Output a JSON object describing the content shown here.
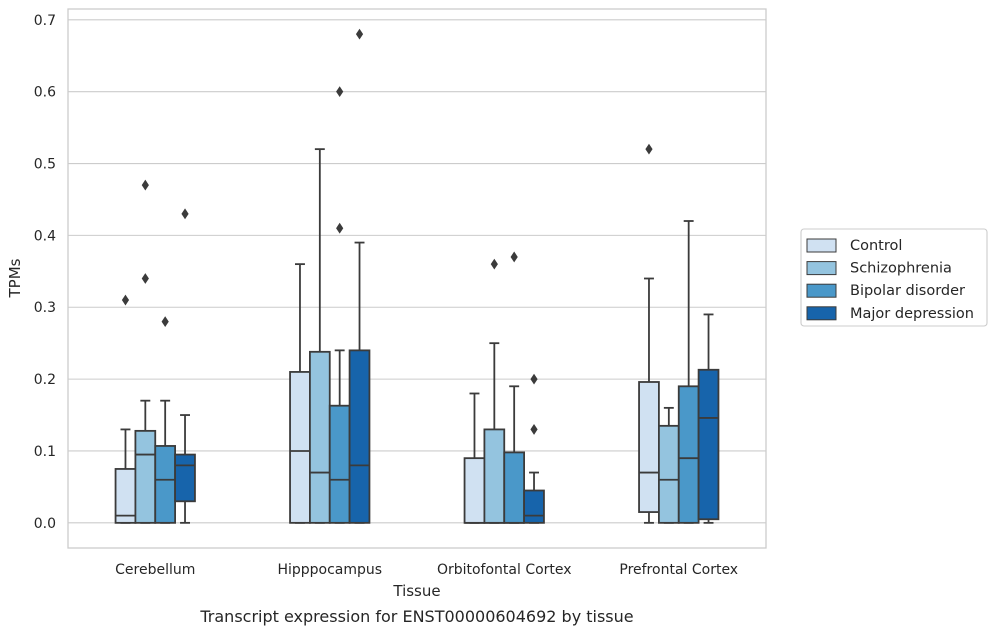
{
  "chart_data": {
    "type": "box",
    "caption": "Transcript expression for ENST00000604692 by tissue",
    "xlabel": "Tissue",
    "ylabel": "TPMs",
    "ylim": [
      -0.035,
      0.715
    ],
    "yticks": [
      0.0,
      0.1,
      0.2,
      0.3,
      0.4,
      0.5,
      0.6,
      0.7
    ],
    "ytick_labels": [
      "0.0",
      "0.1",
      "0.2",
      "0.3",
      "0.4",
      "0.5",
      "0.6",
      "0.7"
    ],
    "grid": "horizontal",
    "legend_position": "right-center",
    "categories": [
      "Cerebellum",
      "Hipppocampus",
      "Orbitofontal Cortex",
      "Prefrontal Cortex"
    ],
    "series": [
      {
        "name": "Control",
        "color": "#d0e1f2",
        "boxes": [
          {
            "whislo": 0.0,
            "q1": 0.0,
            "med": 0.01,
            "q3": 0.075,
            "whishi": 0.13,
            "fliers": [
              0.31
            ]
          },
          {
            "whislo": 0.0,
            "q1": 0.0,
            "med": 0.1,
            "q3": 0.21,
            "whishi": 0.36,
            "fliers": []
          },
          {
            "whislo": 0.0,
            "q1": 0.0,
            "med": 0.0,
            "q3": 0.09,
            "whishi": 0.18,
            "fliers": []
          },
          {
            "whislo": 0.0,
            "q1": 0.015,
            "med": 0.07,
            "q3": 0.196,
            "whishi": 0.34,
            "fliers": [
              0.52
            ]
          }
        ]
      },
      {
        "name": "Schizophrenia",
        "color": "#94c4df",
        "boxes": [
          {
            "whislo": 0.0,
            "q1": 0.0,
            "med": 0.095,
            "q3": 0.128,
            "whishi": 0.17,
            "fliers": [
              0.34,
              0.47
            ]
          },
          {
            "whislo": 0.0,
            "q1": 0.0,
            "med": 0.07,
            "q3": 0.238,
            "whishi": 0.52,
            "fliers": []
          },
          {
            "whislo": 0.0,
            "q1": 0.0,
            "med": 0.0,
            "q3": 0.13,
            "whishi": 0.25,
            "fliers": [
              0.36
            ]
          },
          {
            "whislo": 0.0,
            "q1": 0.0,
            "med": 0.06,
            "q3": 0.135,
            "whishi": 0.16,
            "fliers": []
          }
        ]
      },
      {
        "name": "Bipolar disorder",
        "color": "#4a98c9",
        "boxes": [
          {
            "whislo": 0.0,
            "q1": 0.0,
            "med": 0.06,
            "q3": 0.107,
            "whishi": 0.17,
            "fliers": [
              0.28
            ]
          },
          {
            "whislo": 0.0,
            "q1": 0.0,
            "med": 0.06,
            "q3": 0.163,
            "whishi": 0.24,
            "fliers": [
              0.41,
              0.6
            ]
          },
          {
            "whislo": 0.0,
            "q1": 0.0,
            "med": 0.0,
            "q3": 0.098,
            "whishi": 0.19,
            "fliers": [
              0.37
            ]
          },
          {
            "whislo": 0.0,
            "q1": 0.0,
            "med": 0.09,
            "q3": 0.19,
            "whishi": 0.42,
            "fliers": []
          }
        ]
      },
      {
        "name": "Major depression",
        "color": "#1764ab",
        "boxes": [
          {
            "whislo": 0.0,
            "q1": 0.03,
            "med": 0.08,
            "q3": 0.095,
            "whishi": 0.15,
            "fliers": [
              0.43
            ]
          },
          {
            "whislo": 0.0,
            "q1": 0.0,
            "med": 0.08,
            "q3": 0.24,
            "whishi": 0.39,
            "fliers": [
              0.68
            ]
          },
          {
            "whislo": 0.0,
            "q1": 0.0,
            "med": 0.01,
            "q3": 0.045,
            "whishi": 0.07,
            "fliers": [
              0.13,
              0.2
            ]
          },
          {
            "whislo": 0.0,
            "q1": 0.005,
            "med": 0.146,
            "q3": 0.213,
            "whishi": 0.29,
            "fliers": []
          }
        ]
      }
    ]
  }
}
